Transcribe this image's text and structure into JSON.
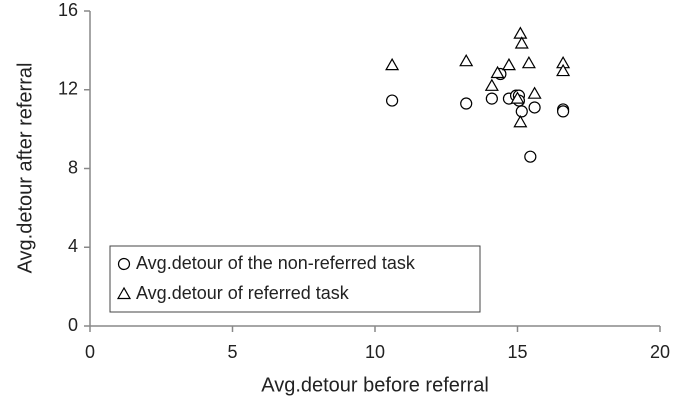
{
  "chart_data": {
    "type": "scatter",
    "xlabel": "Avg.detour before referral",
    "ylabel": "Avg.detour after referral",
    "xlim": [
      0,
      20
    ],
    "xticks": [
      0,
      5,
      10,
      15,
      20
    ],
    "ylim": [
      0,
      16
    ],
    "yticks": [
      0,
      4,
      8,
      12,
      16
    ],
    "legend": "lower left",
    "series": [
      {
        "name": "Avg.detour of the non-referred task",
        "color": "#000000",
        "marker": "circle",
        "x": [
          10.6,
          13.2,
          14.1,
          14.4,
          14.7,
          14.95,
          15.05,
          15.05,
          15.15,
          15.45,
          15.6,
          16.6,
          16.6
        ],
        "values": [
          11.45,
          11.3,
          11.55,
          12.8,
          11.55,
          11.7,
          11.7,
          11.45,
          10.9,
          8.6,
          11.1,
          11.0,
          10.9
        ]
      },
      {
        "name": "Avg.detour of referred task",
        "color": "#000000",
        "marker": "triangle",
        "x": [
          10.6,
          13.2,
          14.1,
          14.3,
          14.7,
          15.0,
          15.1,
          15.15,
          15.1,
          15.4,
          15.6,
          16.6,
          16.6
        ],
        "values": [
          13.25,
          13.45,
          12.2,
          12.85,
          13.25,
          11.55,
          14.85,
          14.35,
          10.35,
          13.35,
          11.8,
          13.35,
          12.95
        ]
      }
    ]
  }
}
